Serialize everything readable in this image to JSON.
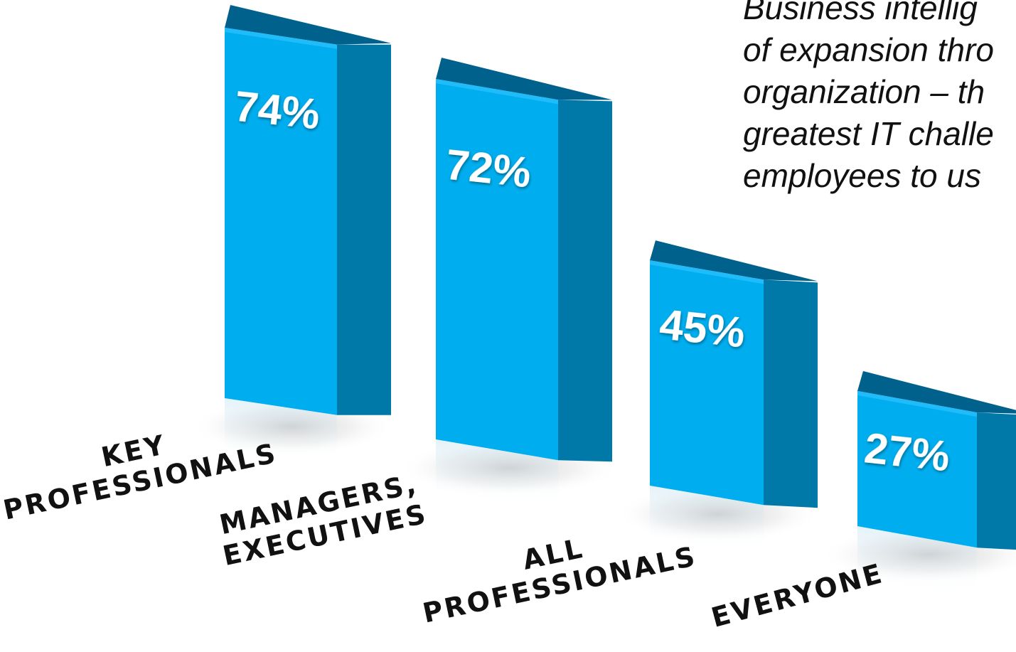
{
  "caption": {
    "lines": [
      "Business intellig",
      "of expansion thro",
      "organization – th",
      "greatest IT challe",
      "employees  to us"
    ]
  },
  "colors": {
    "front": "#00AEEF",
    "side": "#0079A8",
    "top": "#00628C",
    "label_text": "#111111",
    "value_text": "#FFFFFF"
  },
  "chart_data": {
    "type": "bar",
    "categories": [
      [
        "KEY",
        "PROFESSIONALS"
      ],
      [
        "MANAGERS,",
        "EXECUTIVES"
      ],
      [
        "ALL",
        "PROFESSIONALS"
      ],
      [
        "EVERYONE"
      ]
    ],
    "values": [
      74,
      72,
      45,
      27
    ],
    "value_labels": [
      "74%",
      "72%",
      "45%",
      "27%"
    ],
    "unit": "%"
  }
}
